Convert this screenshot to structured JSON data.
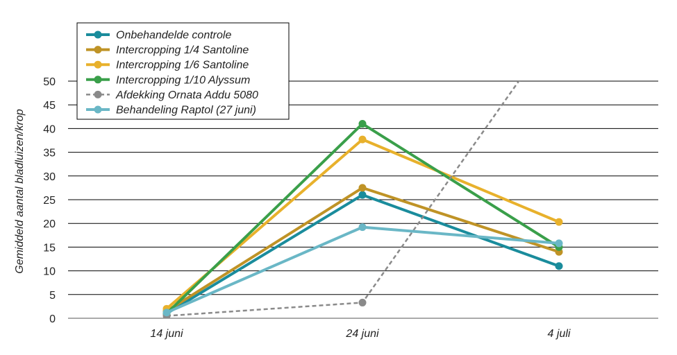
{
  "chart_data": {
    "type": "line",
    "title": "",
    "xlabel": "",
    "ylabel": "Gemiddeld aantal bladluizen/krop",
    "categories": [
      "14 juni",
      "24 juni",
      "4 juli"
    ],
    "ylim": [
      0,
      50
    ],
    "yticks": [
      0,
      5,
      10,
      15,
      20,
      25,
      30,
      35,
      40,
      45,
      50
    ],
    "grid": "horizontal",
    "legend_position": "top-left",
    "series": [
      {
        "name": "Onbehandelde controle",
        "color": "#1a8c9c",
        "dashed": false,
        "values": [
          1,
          26,
          11
        ]
      },
      {
        "name": "Intercropping 1/4 Santoline",
        "color": "#bf9326",
        "dashed": false,
        "values": [
          1.5,
          27.5,
          14
        ]
      },
      {
        "name": "Intercropping 1/6 Santoline",
        "color": "#e8b12c",
        "dashed": false,
        "values": [
          2,
          37.7,
          20.3
        ]
      },
      {
        "name": "Intercropping 1/10 Alyssum",
        "color": "#3a9f4a",
        "dashed": false,
        "values": [
          1,
          41,
          15
        ]
      },
      {
        "name": "Afdekking Ornata Addu 5080",
        "color": "#8a8a8a",
        "dashed": true,
        "values": [
          0.5,
          3.3,
          62
        ]
      },
      {
        "name": "Behandeling Raptol (27 juni)",
        "color": "#6ab7c6",
        "dashed": false,
        "values": [
          1.2,
          19.2,
          15.8
        ]
      }
    ]
  }
}
